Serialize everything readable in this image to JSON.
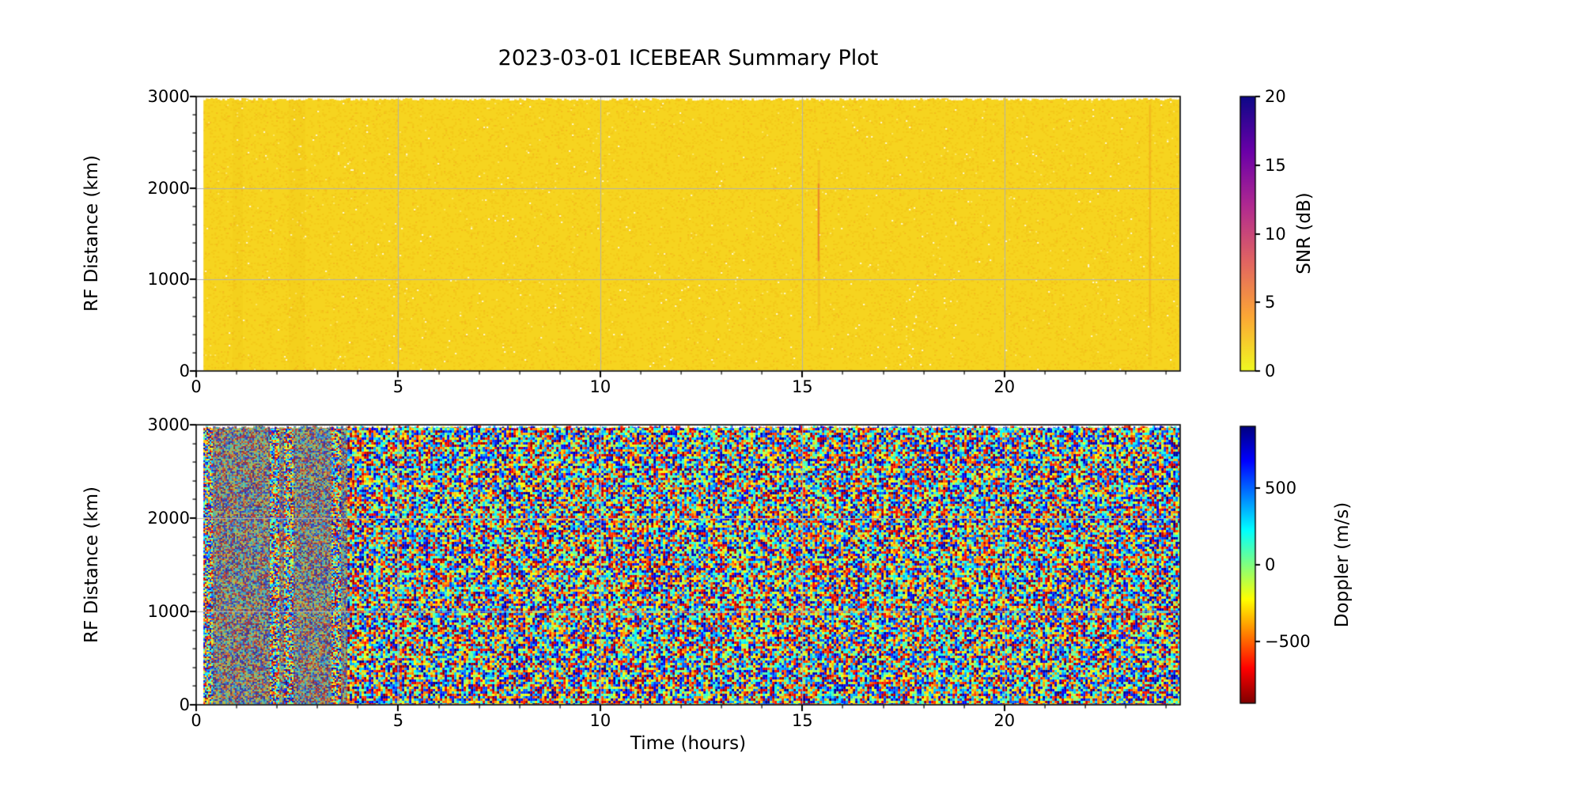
{
  "figure": {
    "title": "2023-03-01 ICEBEAR Summary Plot",
    "background": "#ffffff",
    "text_color": "#000000",
    "grid_color": "#b0b0b0"
  },
  "chart_data": [
    {
      "type": "heatmap",
      "name": "snr-panel",
      "ylabel": "RF Distance (km)",
      "xlabel": "",
      "x_unit": "hours",
      "x_range": [
        0,
        24.35
      ],
      "y_range": [
        0,
        3000
      ],
      "x_major_ticks": [
        0,
        5,
        10,
        15,
        20
      ],
      "x_minor_step": 1,
      "y_major_ticks": [
        0,
        1000,
        2000,
        3000
      ],
      "y_minor_step": 200,
      "grid": true,
      "colorbar": {
        "label": "SNR (dB)",
        "range": [
          0,
          20
        ],
        "ticks": [
          0,
          5,
          10,
          15,
          20
        ],
        "colormap": "plasma_r",
        "gradient_top_to_bottom": [
          {
            "pos": 0.0,
            "color": "#0d0887"
          },
          {
            "pos": 0.2,
            "color": "#6a00a8"
          },
          {
            "pos": 0.4,
            "color": "#b12a90"
          },
          {
            "pos": 0.6,
            "color": "#e16462"
          },
          {
            "pos": 0.8,
            "color": "#fca636"
          },
          {
            "pos": 1.0,
            "color": "#f0f921"
          }
        ]
      },
      "data_summary": {
        "background_snr_db": 0,
        "base_color": "#f6d41f",
        "description": "Noise-floor SNR of ~0 dB (uniform yellow) over all ranges 0-3000 km and times ~0.2-24.35 h, with sparse faint orange speckle and a ragged white top edge near 3000 km",
        "data_start_hour": 0.18,
        "artifacts": [
          {
            "time_h": 15.4,
            "range_km": [
              1200,
              2050
            ],
            "note": "faint red vertical streak"
          },
          {
            "time_h": 23.6,
            "range_km": [
              600,
              2900
            ],
            "note": "faint orange vertical streak"
          },
          {
            "time_h": [
              0.9,
              1.15
            ],
            "note": "subtle darker gold vertical band"
          },
          {
            "time_h": [
              2.3,
              2.7
            ],
            "note": "subtle darker gold vertical band"
          }
        ]
      }
    },
    {
      "type": "heatmap",
      "name": "doppler-panel",
      "ylabel": "RF Distance (km)",
      "xlabel": "Time (hours)",
      "x_unit": "hours",
      "x_range": [
        0,
        24.35
      ],
      "y_range": [
        0,
        3000
      ],
      "x_major_ticks": [
        0,
        5,
        10,
        15,
        20
      ],
      "x_minor_step": 1,
      "y_major_ticks": [
        0,
        1000,
        2000,
        3000
      ],
      "y_minor_step": 200,
      "grid": true,
      "colorbar": {
        "label": "Doppler (m/s)",
        "range": [
          -900,
          900
        ],
        "ticks": [
          -500,
          0,
          500
        ],
        "colormap": "jet_r",
        "gradient_top_to_bottom": [
          {
            "pos": 0.0,
            "color": "#00007f"
          },
          {
            "pos": 0.125,
            "color": "#0000ff"
          },
          {
            "pos": 0.375,
            "color": "#00ffff"
          },
          {
            "pos": 0.5,
            "color": "#80ff80"
          },
          {
            "pos": 0.625,
            "color": "#ffff00"
          },
          {
            "pos": 0.875,
            "color": "#ff0000"
          },
          {
            "pos": 1.0,
            "color": "#7f0000"
          }
        ]
      },
      "data_summary": {
        "description": "Spatially uncorrelated Doppler noise spanning the full ±900 m/s scale at all ranges and times (no coherent echoes); gridlines visible through the speckle",
        "data_start_hour": 0.18,
        "texture_regions": [
          {
            "time_h": [
              0.18,
              3.72
            ],
            "style": "fine muted speckle"
          },
          {
            "time_h": [
              3.72,
              24.35
            ],
            "style": "coarse saturated speckle"
          }
        ],
        "saturated_bands_h": [
          [
            0.18,
            0.4
          ],
          [
            1.82,
            2.05
          ],
          [
            2.15,
            2.4
          ],
          [
            3.35,
            3.55
          ]
        ]
      }
    }
  ]
}
